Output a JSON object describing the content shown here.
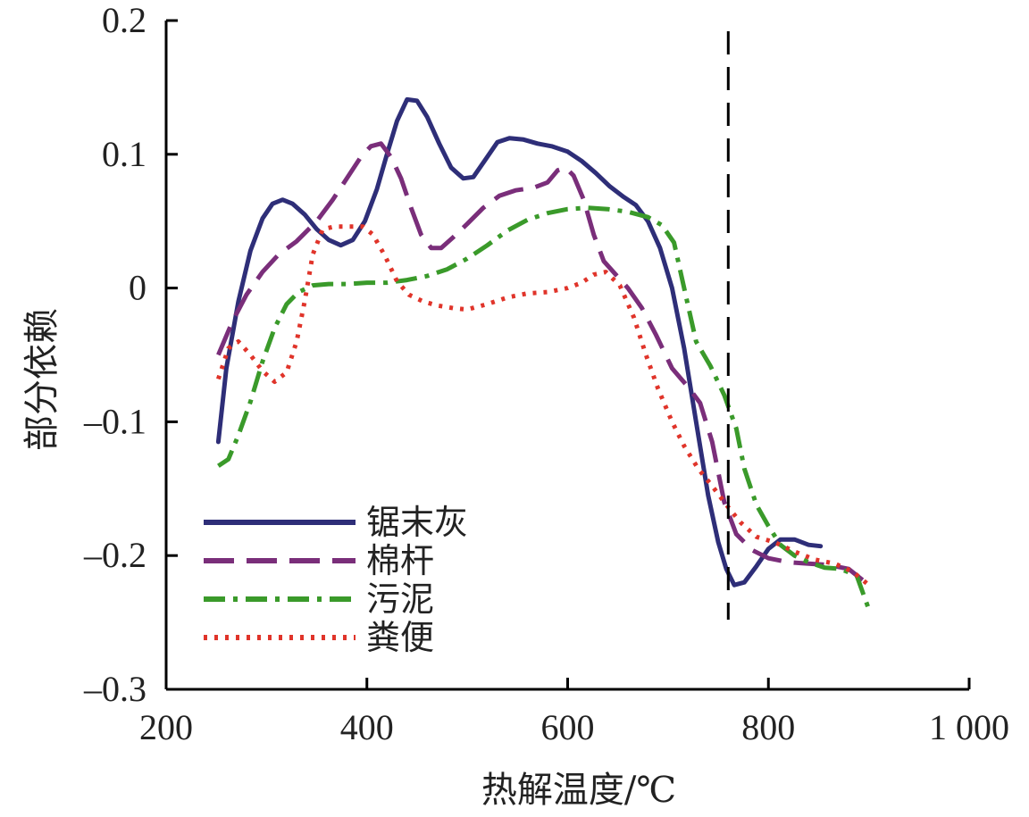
{
  "chart_data": {
    "type": "line",
    "title": "",
    "xlabel": "热解温度/℃",
    "ylabel": "部分依赖",
    "xlim": [
      200,
      1000
    ],
    "ylim": [
      -0.3,
      0.2
    ],
    "xticks": [
      200,
      400,
      600,
      800,
      1000
    ],
    "xtick_labels": [
      "200",
      "400",
      "600",
      "800",
      "1 000"
    ],
    "yticks": [
      0.2,
      0.1,
      0,
      -0.1,
      -0.2,
      -0.3
    ],
    "ytick_labels": [
      "0.2",
      "0.1",
      "0",
      "–0.1",
      "–0.2",
      "–0.3"
    ],
    "grid": false,
    "legend_position": "bottom-left",
    "reference_line": {
      "x": 760,
      "style": "dashed",
      "color": "#000000"
    },
    "series": [
      {
        "name": "锯末灰",
        "color": "#2e2e78",
        "dash": "solid",
        "points": [
          [
            252,
            -0.115
          ],
          [
            260,
            -0.06
          ],
          [
            272,
            -0.01
          ],
          [
            284,
            0.028
          ],
          [
            296,
            0.052
          ],
          [
            306,
            0.063
          ],
          [
            316,
            0.066
          ],
          [
            326,
            0.063
          ],
          [
            338,
            0.055
          ],
          [
            350,
            0.044
          ],
          [
            362,
            0.036
          ],
          [
            374,
            0.032
          ],
          [
            386,
            0.036
          ],
          [
            398,
            0.05
          ],
          [
            410,
            0.074
          ],
          [
            420,
            0.1
          ],
          [
            430,
            0.125
          ],
          [
            440,
            0.141
          ],
          [
            450,
            0.14
          ],
          [
            460,
            0.128
          ],
          [
            472,
            0.108
          ],
          [
            484,
            0.09
          ],
          [
            496,
            0.082
          ],
          [
            506,
            0.083
          ],
          [
            518,
            0.096
          ],
          [
            530,
            0.109
          ],
          [
            542,
            0.112
          ],
          [
            556,
            0.111
          ],
          [
            570,
            0.108
          ],
          [
            584,
            0.106
          ],
          [
            600,
            0.102
          ],
          [
            614,
            0.095
          ],
          [
            628,
            0.086
          ],
          [
            642,
            0.076
          ],
          [
            656,
            0.068
          ],
          [
            668,
            0.062
          ],
          [
            680,
            0.05
          ],
          [
            692,
            0.03
          ],
          [
            704,
            0.0
          ],
          [
            716,
            -0.045
          ],
          [
            728,
            -0.1
          ],
          [
            740,
            -0.155
          ],
          [
            750,
            -0.19
          ],
          [
            758,
            -0.21
          ],
          [
            766,
            -0.222
          ],
          [
            776,
            -0.22
          ],
          [
            788,
            -0.208
          ],
          [
            800,
            -0.195
          ],
          [
            812,
            -0.188
          ],
          [
            826,
            -0.188
          ],
          [
            840,
            -0.192
          ],
          [
            852,
            -0.193
          ]
        ]
      },
      {
        "name": "棉杆",
        "color": "#7a2e7a",
        "dash": "long-dash",
        "points": [
          [
            252,
            -0.05
          ],
          [
            266,
            -0.025
          ],
          [
            280,
            -0.005
          ],
          [
            296,
            0.012
          ],
          [
            312,
            0.025
          ],
          [
            330,
            0.035
          ],
          [
            350,
            0.05
          ],
          [
            366,
            0.066
          ],
          [
            380,
            0.082
          ],
          [
            394,
            0.098
          ],
          [
            404,
            0.106
          ],
          [
            414,
            0.108
          ],
          [
            424,
            0.098
          ],
          [
            434,
            0.082
          ],
          [
            444,
            0.06
          ],
          [
            454,
            0.04
          ],
          [
            464,
            0.03
          ],
          [
            474,
            0.03
          ],
          [
            486,
            0.038
          ],
          [
            500,
            0.048
          ],
          [
            516,
            0.06
          ],
          [
            532,
            0.069
          ],
          [
            548,
            0.073
          ],
          [
            566,
            0.075
          ],
          [
            580,
            0.079
          ],
          [
            590,
            0.088
          ],
          [
            598,
            0.09
          ],
          [
            606,
            0.084
          ],
          [
            616,
            0.066
          ],
          [
            626,
            0.04
          ],
          [
            636,
            0.02
          ],
          [
            648,
            0.01
          ],
          [
            660,
            0.0
          ],
          [
            674,
            -0.015
          ],
          [
            688,
            -0.035
          ],
          [
            704,
            -0.06
          ],
          [
            720,
            -0.074
          ],
          [
            732,
            -0.086
          ],
          [
            744,
            -0.115
          ],
          [
            756,
            -0.16
          ],
          [
            768,
            -0.184
          ],
          [
            784,
            -0.196
          ],
          [
            800,
            -0.202
          ],
          [
            820,
            -0.205
          ],
          [
            840,
            -0.206
          ],
          [
            860,
            -0.207
          ],
          [
            880,
            -0.21
          ],
          [
            900,
            -0.222
          ]
        ]
      },
      {
        "name": "污泥",
        "color": "#3a9a2a",
        "dash": "dash-dot",
        "points": [
          [
            252,
            -0.133
          ],
          [
            262,
            -0.128
          ],
          [
            272,
            -0.11
          ],
          [
            284,
            -0.085
          ],
          [
            296,
            -0.055
          ],
          [
            308,
            -0.03
          ],
          [
            320,
            -0.012
          ],
          [
            332,
            -0.003
          ],
          [
            346,
            0.002
          ],
          [
            362,
            0.003
          ],
          [
            380,
            0.003
          ],
          [
            400,
            0.004
          ],
          [
            420,
            0.004
          ],
          [
            440,
            0.006
          ],
          [
            460,
            0.009
          ],
          [
            480,
            0.014
          ],
          [
            500,
            0.022
          ],
          [
            520,
            0.032
          ],
          [
            540,
            0.043
          ],
          [
            560,
            0.051
          ],
          [
            580,
            0.056
          ],
          [
            600,
            0.059
          ],
          [
            620,
            0.06
          ],
          [
            640,
            0.059
          ],
          [
            660,
            0.057
          ],
          [
            680,
            0.053
          ],
          [
            694,
            0.047
          ],
          [
            706,
            0.034
          ],
          [
            716,
            0.0
          ],
          [
            728,
            -0.04
          ],
          [
            742,
            -0.058
          ],
          [
            756,
            -0.08
          ],
          [
            768,
            -0.105
          ],
          [
            776,
            -0.135
          ],
          [
            788,
            -0.162
          ],
          [
            800,
            -0.178
          ],
          [
            812,
            -0.192
          ],
          [
            826,
            -0.2
          ],
          [
            840,
            -0.205
          ],
          [
            856,
            -0.209
          ],
          [
            872,
            -0.21
          ],
          [
            888,
            -0.215
          ],
          [
            900,
            -0.24
          ]
        ]
      },
      {
        "name": "粪便",
        "color": "#e0342a",
        "dash": "dotted",
        "points": [
          [
            252,
            -0.068
          ],
          [
            262,
            -0.045
          ],
          [
            272,
            -0.04
          ],
          [
            284,
            -0.05
          ],
          [
            296,
            -0.062
          ],
          [
            308,
            -0.07
          ],
          [
            320,
            -0.063
          ],
          [
            330,
            -0.04
          ],
          [
            338,
            -0.01
          ],
          [
            346,
            0.025
          ],
          [
            356,
            0.044
          ],
          [
            368,
            0.046
          ],
          [
            382,
            0.046
          ],
          [
            396,
            0.046
          ],
          [
            406,
            0.04
          ],
          [
            418,
            0.024
          ],
          [
            430,
            0.005
          ],
          [
            442,
            -0.005
          ],
          [
            456,
            -0.01
          ],
          [
            470,
            -0.013
          ],
          [
            486,
            -0.015
          ],
          [
            500,
            -0.016
          ],
          [
            520,
            -0.012
          ],
          [
            540,
            -0.007
          ],
          [
            560,
            -0.004
          ],
          [
            580,
            -0.003
          ],
          [
            600,
            0.0
          ],
          [
            614,
            0.004
          ],
          [
            626,
            0.01
          ],
          [
            638,
            0.012
          ],
          [
            652,
            0.002
          ],
          [
            666,
            -0.022
          ],
          [
            678,
            -0.05
          ],
          [
            690,
            -0.075
          ],
          [
            704,
            -0.1
          ],
          [
            716,
            -0.118
          ],
          [
            730,
            -0.135
          ],
          [
            744,
            -0.148
          ],
          [
            758,
            -0.162
          ],
          [
            772,
            -0.175
          ],
          [
            788,
            -0.186
          ],
          [
            806,
            -0.19
          ],
          [
            826,
            -0.197
          ],
          [
            846,
            -0.203
          ],
          [
            866,
            -0.206
          ],
          [
            884,
            -0.212
          ],
          [
            900,
            -0.222
          ]
        ]
      }
    ]
  }
}
